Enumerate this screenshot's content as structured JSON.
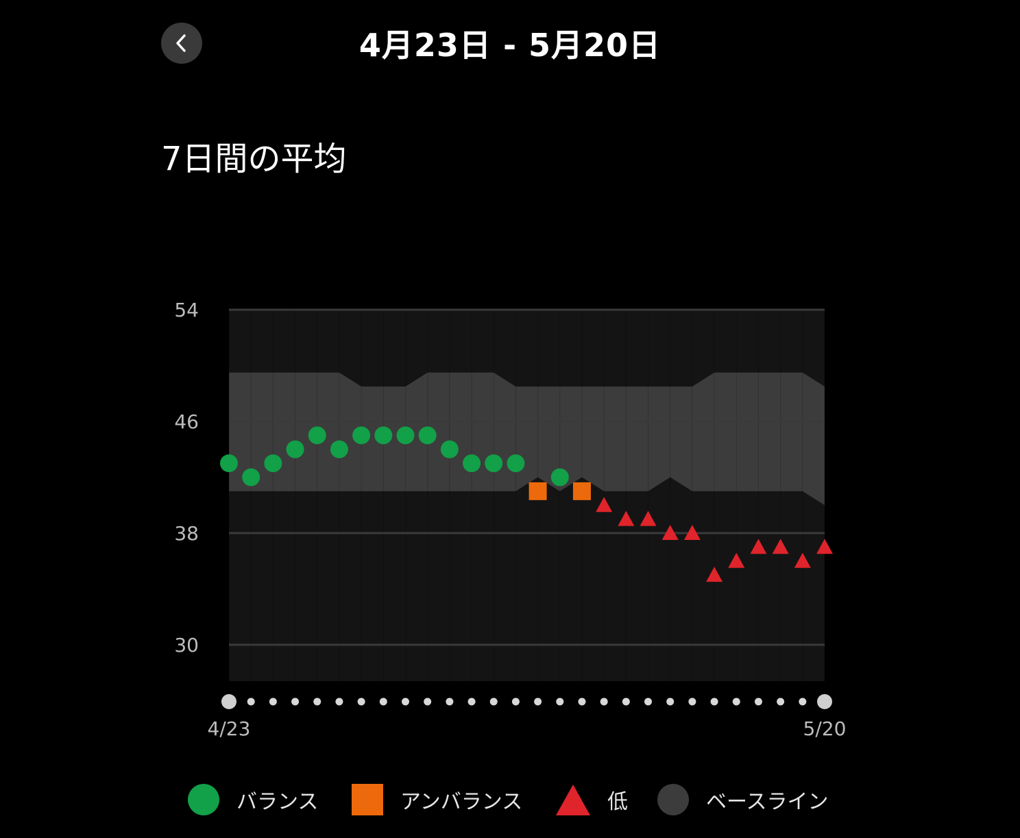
{
  "header": {
    "title": "4月23日 - 5月20日"
  },
  "section": {
    "title": "7日間の平均"
  },
  "chart_data": {
    "type": "scatter",
    "y_ticks": [
      54,
      46,
      38,
      30
    ],
    "ylim": [
      27.4,
      54
    ],
    "grid": true,
    "x_labels": {
      "start": "4/23",
      "end": "5/20"
    },
    "points": [
      {
        "value": 43,
        "status": "balance"
      },
      {
        "value": 42,
        "status": "balance"
      },
      {
        "value": 43,
        "status": "balance"
      },
      {
        "value": 44,
        "status": "balance"
      },
      {
        "value": 45,
        "status": "balance"
      },
      {
        "value": 44,
        "status": "balance"
      },
      {
        "value": 45,
        "status": "balance"
      },
      {
        "value": 45,
        "status": "balance"
      },
      {
        "value": 45,
        "status": "balance"
      },
      {
        "value": 45,
        "status": "balance"
      },
      {
        "value": 44,
        "status": "balance"
      },
      {
        "value": 43,
        "status": "balance"
      },
      {
        "value": 43,
        "status": "balance"
      },
      {
        "value": 43,
        "status": "balance"
      },
      {
        "value": 41,
        "status": "unbalanced"
      },
      {
        "value": 42,
        "status": "balance"
      },
      {
        "value": 41,
        "status": "unbalanced"
      },
      {
        "value": 40,
        "status": "low"
      },
      {
        "value": 39,
        "status": "low"
      },
      {
        "value": 39,
        "status": "low"
      },
      {
        "value": 38,
        "status": "low"
      },
      {
        "value": 38,
        "status": "low"
      },
      {
        "value": 35,
        "status": "low"
      },
      {
        "value": 36,
        "status": "low"
      },
      {
        "value": 37,
        "status": "low"
      },
      {
        "value": 37,
        "status": "low"
      },
      {
        "value": 36,
        "status": "low"
      },
      {
        "value": 37,
        "status": "low"
      }
    ],
    "baseline": {
      "upper": [
        49.5,
        49.5,
        49.5,
        49.5,
        49.5,
        49.5,
        48.5,
        48.5,
        48.5,
        49.5,
        49.5,
        49.5,
        49.5,
        48.5,
        48.5,
        48.5,
        48.5,
        48.5,
        48.5,
        48.5,
        48.5,
        48.5,
        49.5,
        49.5,
        49.5,
        49.5,
        49.5,
        48.5
      ],
      "lower": [
        41,
        41,
        41,
        41,
        41,
        41,
        41,
        41,
        41,
        41,
        41,
        41,
        41,
        41,
        42,
        41,
        42,
        41,
        41,
        41,
        42,
        41,
        41,
        41,
        41,
        41,
        41,
        40
      ]
    },
    "legend": [
      {
        "key": "balance",
        "label": "バランス",
        "shape": "circle",
        "color": "#12a048"
      },
      {
        "key": "unbalanced",
        "label": "アンバランス",
        "shape": "square",
        "color": "#ec6a0c"
      },
      {
        "key": "low",
        "label": "低",
        "shape": "triangle",
        "color": "#e0242b"
      },
      {
        "key": "baseline",
        "label": "ベースライン",
        "shape": "circle",
        "color": "#3c3c3c"
      }
    ]
  },
  "colors": {
    "background": "#000000",
    "plot_bg": "#141414",
    "baseline_band": "#3c3c3c",
    "grid": "#3a3a3a",
    "axis_text": "#bdbdbd",
    "axis_dot": "#d8d8d8"
  }
}
